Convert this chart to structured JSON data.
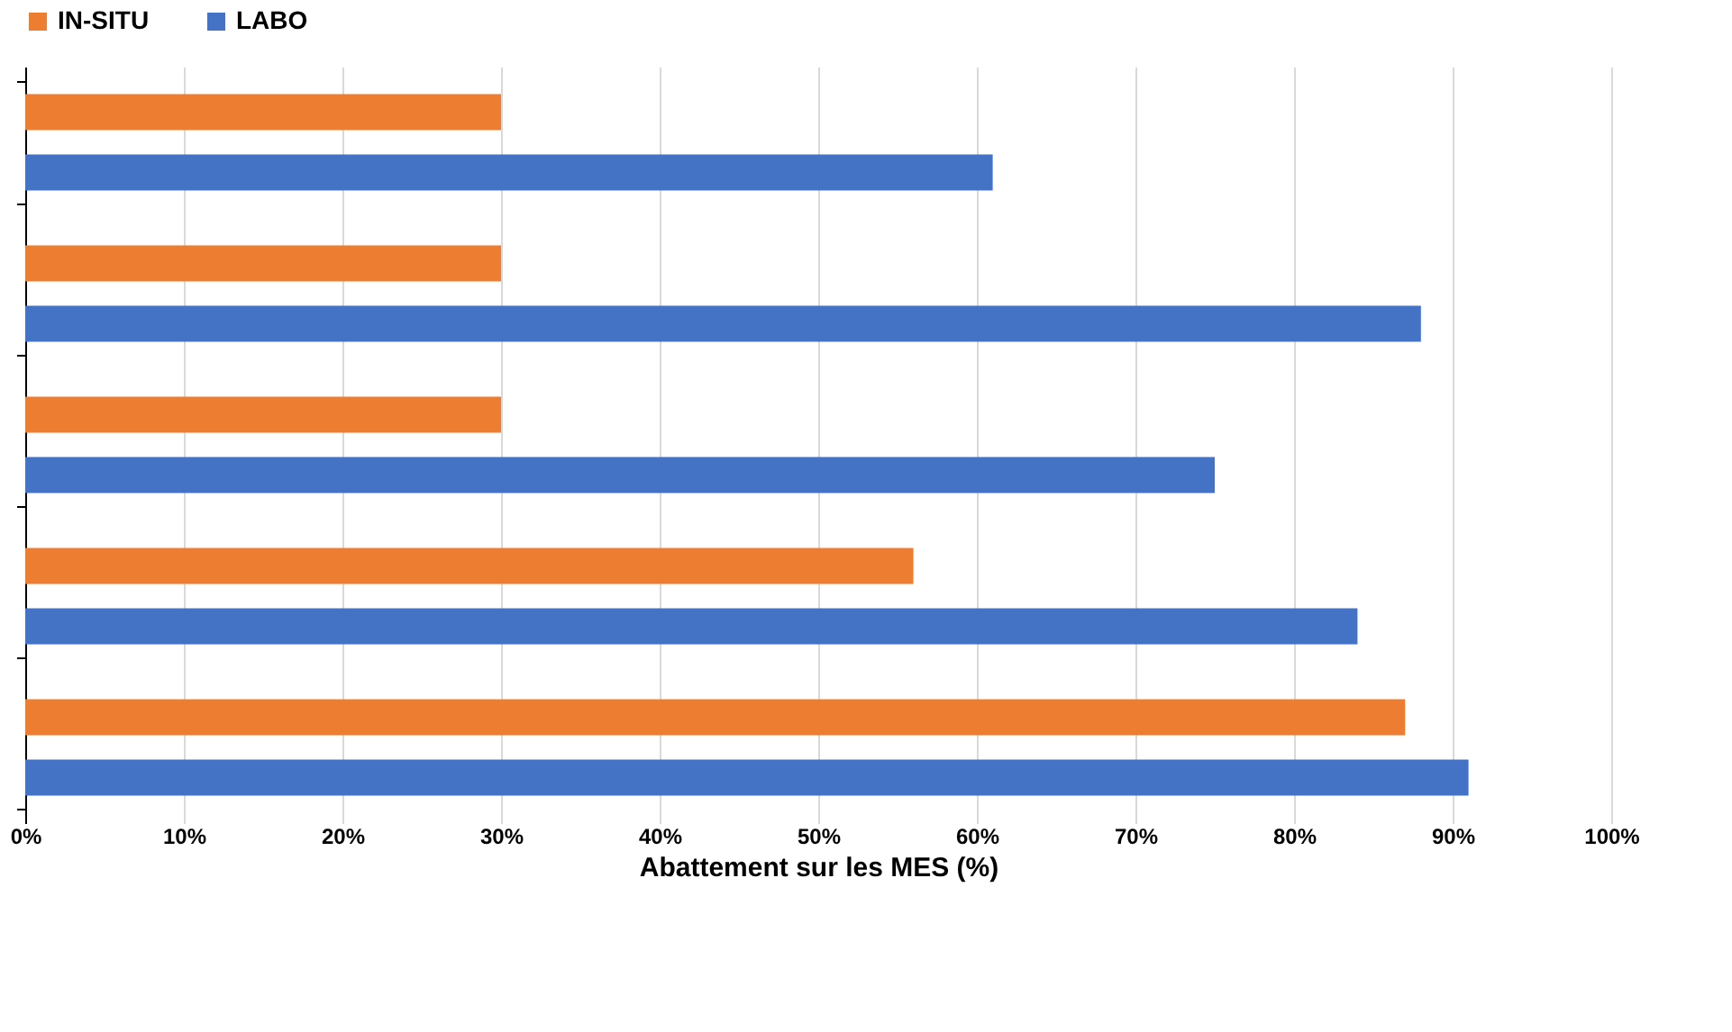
{
  "chart_data": {
    "type": "bar",
    "orientation": "horizontal",
    "xlabel": "Abattement sur les MES (%)",
    "categories": [
      null,
      null,
      null,
      null,
      null
    ],
    "series": [
      {
        "name": "IN-SITU",
        "color": "#ed7d31",
        "values": [
          30,
          30,
          30,
          56,
          87
        ]
      },
      {
        "name": "LABO",
        "color": "#4472c4",
        "values": [
          61,
          88,
          75,
          84,
          91
        ]
      }
    ],
    "xlim": [
      0,
      100
    ],
    "xticks": [
      {
        "value": 0,
        "label": "0%"
      },
      {
        "value": 10,
        "label": "10%"
      },
      {
        "value": 20,
        "label": "20%"
      },
      {
        "value": 30,
        "label": "30%"
      },
      {
        "value": 40,
        "label": "40%"
      },
      {
        "value": 50,
        "label": "50%"
      },
      {
        "value": 60,
        "label": "60%"
      },
      {
        "value": 70,
        "label": "70%"
      },
      {
        "value": 80,
        "label": "80%"
      },
      {
        "value": 90,
        "label": "90%"
      },
      {
        "value": 100,
        "label": "100%"
      }
    ],
    "grid": "x",
    "legend": "top",
    "tick_labels": "x"
  }
}
